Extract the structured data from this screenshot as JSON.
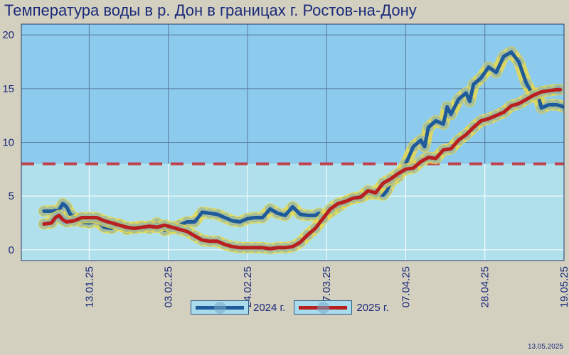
{
  "chart_data": {
    "type": "line",
    "title": "Температура воды в р. Дон в границах г. Ростов-на-Дону",
    "xlabel": "",
    "ylabel": "",
    "ylim": [
      -1,
      21
    ],
    "yticks": [
      0,
      5,
      10,
      15,
      20
    ],
    "x_tick_labels": [
      "13.01.25",
      "03.02.25",
      "24.02.25",
      "17.03.25",
      "07.04.25",
      "28.04.25",
      "19.05.25"
    ],
    "x_tick_days": [
      12,
      33,
      54,
      75,
      96,
      117,
      138
    ],
    "xlim_days": [
      -6,
      138
    ],
    "threshold": 8,
    "threshold_color": "#c0404a",
    "grid": true,
    "legend_position": "bottom-center",
    "series": [
      {
        "name": "2024 г.",
        "color": "#1f5a9a",
        "points": [
          [
            0,
            3.6
          ],
          [
            2,
            3.6
          ],
          [
            4,
            3.7
          ],
          [
            5,
            4.3
          ],
          [
            6,
            4.0
          ],
          [
            7,
            3.3
          ],
          [
            8,
            3.0
          ],
          [
            10,
            2.6
          ],
          [
            12,
            2.5
          ],
          [
            14,
            2.7
          ],
          [
            16,
            2.1
          ],
          [
            18,
            2.0
          ],
          [
            20,
            2.4
          ],
          [
            22,
            1.9
          ],
          [
            24,
            2.1
          ],
          [
            26,
            2.2
          ],
          [
            28,
            2.0
          ],
          [
            30,
            2.5
          ],
          [
            32,
            1.8
          ],
          [
            34,
            2.0
          ],
          [
            36,
            2.3
          ],
          [
            38,
            2.6
          ],
          [
            40,
            2.6
          ],
          [
            42,
            3.5
          ],
          [
            44,
            3.4
          ],
          [
            46,
            3.3
          ],
          [
            48,
            3.0
          ],
          [
            50,
            2.7
          ],
          [
            52,
            2.6
          ],
          [
            54,
            2.9
          ],
          [
            56,
            3.0
          ],
          [
            58,
            3.0
          ],
          [
            60,
            3.8
          ],
          [
            62,
            3.4
          ],
          [
            64,
            3.2
          ],
          [
            66,
            4.0
          ],
          [
            68,
            3.3
          ],
          [
            70,
            3.2
          ],
          [
            72,
            3.2
          ],
          [
            73,
            3.4
          ],
          [
            74,
            3.1
          ],
          [
            76,
            3.5
          ],
          [
            78,
            4.0
          ],
          [
            80,
            4.5
          ],
          [
            82,
            4.8
          ],
          [
            84,
            4.9
          ],
          [
            86,
            5.2
          ],
          [
            88,
            5.2
          ],
          [
            90,
            5.1
          ],
          [
            91,
            5.5
          ],
          [
            92,
            6.3
          ],
          [
            94,
            6.8
          ],
          [
            96,
            8.0
          ],
          [
            98,
            9.6
          ],
          [
            100,
            10.2
          ],
          [
            101,
            9.6
          ],
          [
            102,
            11.4
          ],
          [
            104,
            12.0
          ],
          [
            106,
            11.7
          ],
          [
            107,
            13.3
          ],
          [
            108,
            12.6
          ],
          [
            110,
            14.0
          ],
          [
            112,
            14.6
          ],
          [
            113,
            13.8
          ],
          [
            114,
            15.4
          ],
          [
            116,
            16.0
          ],
          [
            118,
            17.0
          ],
          [
            120,
            16.5
          ],
          [
            122,
            18.0
          ],
          [
            124,
            18.4
          ],
          [
            126,
            17.5
          ],
          [
            128,
            15.5
          ],
          [
            130,
            14.3
          ],
          [
            131,
            14.5
          ],
          [
            132,
            13.2
          ],
          [
            134,
            13.5
          ],
          [
            136,
            13.5
          ],
          [
            138,
            13.3
          ],
          [
            139,
            13.1
          ]
        ]
      },
      {
        "name": "2025 г.",
        "color": "#b82020",
        "points": [
          [
            0,
            2.4
          ],
          [
            2,
            2.5
          ],
          [
            3,
            3.0
          ],
          [
            4,
            3.2
          ],
          [
            5,
            2.8
          ],
          [
            6,
            2.6
          ],
          [
            8,
            2.7
          ],
          [
            10,
            3.0
          ],
          [
            12,
            3.0
          ],
          [
            14,
            3.0
          ],
          [
            16,
            2.7
          ],
          [
            18,
            2.5
          ],
          [
            20,
            2.3
          ],
          [
            22,
            2.1
          ],
          [
            24,
            2.0
          ],
          [
            26,
            2.1
          ],
          [
            28,
            2.2
          ],
          [
            30,
            2.1
          ],
          [
            32,
            2.3
          ],
          [
            34,
            2.1
          ],
          [
            36,
            1.9
          ],
          [
            38,
            1.7
          ],
          [
            40,
            1.3
          ],
          [
            42,
            0.9
          ],
          [
            44,
            0.8
          ],
          [
            46,
            0.8
          ],
          [
            48,
            0.5
          ],
          [
            50,
            0.3
          ],
          [
            52,
            0.2
          ],
          [
            54,
            0.2
          ],
          [
            56,
            0.2
          ],
          [
            58,
            0.2
          ],
          [
            60,
            0.1
          ],
          [
            62,
            0.2
          ],
          [
            64,
            0.2
          ],
          [
            66,
            0.3
          ],
          [
            68,
            0.7
          ],
          [
            70,
            1.4
          ],
          [
            72,
            2.0
          ],
          [
            74,
            2.9
          ],
          [
            76,
            3.8
          ],
          [
            78,
            4.3
          ],
          [
            80,
            4.5
          ],
          [
            82,
            4.8
          ],
          [
            84,
            4.9
          ],
          [
            86,
            5.5
          ],
          [
            88,
            5.3
          ],
          [
            90,
            6.2
          ],
          [
            92,
            6.6
          ],
          [
            94,
            7.1
          ],
          [
            96,
            7.5
          ],
          [
            98,
            7.6
          ],
          [
            100,
            8.2
          ],
          [
            102,
            8.6
          ],
          [
            104,
            8.5
          ],
          [
            106,
            9.3
          ],
          [
            108,
            9.4
          ],
          [
            110,
            10.2
          ],
          [
            112,
            10.7
          ],
          [
            114,
            11.4
          ],
          [
            116,
            12.0
          ],
          [
            118,
            12.2
          ],
          [
            120,
            12.5
          ],
          [
            122,
            12.8
          ],
          [
            124,
            13.4
          ],
          [
            126,
            13.6
          ],
          [
            128,
            14.0
          ],
          [
            130,
            14.4
          ],
          [
            132,
            14.7
          ],
          [
            134,
            14.8
          ],
          [
            136,
            14.9
          ],
          [
            137,
            14.9
          ]
        ]
      }
    ]
  },
  "legend": {
    "items": [
      {
        "label": "2024 г."
      },
      {
        "label": "2025 г."
      }
    ]
  },
  "footer": {
    "date": "13.05.2025"
  }
}
